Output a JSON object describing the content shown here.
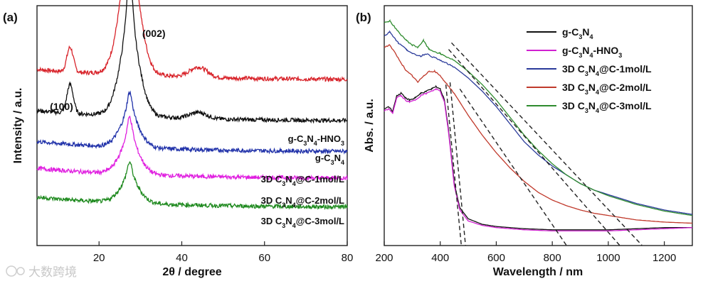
{
  "chart_data": [
    {
      "panel_label": "(a)",
      "type": "line",
      "xlabel": "2θ / degree",
      "ylabel": "Intensity / a.u.",
      "xlim": [
        5,
        80
      ],
      "xticks": [
        "20",
        "40",
        "60",
        "80"
      ],
      "y_ticks_shown": false,
      "peak_annotations": [
        {
          "text": "(100)",
          "x": 13.0
        },
        {
          "text": "(002)",
          "x": 27.4
        }
      ],
      "series": [
        {
          "name": "g-C3N4-HNO3",
          "label_main": "g-C",
          "sub1": "3",
          "mid": "N",
          "sub2": "4",
          "tail": "-HNO",
          "sub3": "3",
          "color": "#d8232a",
          "baseline": 0.75,
          "peak100": 0.12,
          "peak002": 1.0,
          "hump": 0.05
        },
        {
          "name": "g-C3N4",
          "label_main": "g-C",
          "sub1": "3",
          "mid": "N",
          "sub2": "4",
          "tail": "",
          "sub3": "",
          "color": "#111111",
          "baseline": 0.55,
          "peak100": 0.14,
          "peak002": 0.72,
          "hump": 0.03
        },
        {
          "name": "3D C3N4@C-1mol/L",
          "label_main": "3D C",
          "sub1": "3",
          "mid": "N",
          "sub2": "4",
          "tail": "@C-1mol/L",
          "sub3": "",
          "color": "#2233aa",
          "baseline": 0.4,
          "peak100": 0.0,
          "peak002": 0.27,
          "hump": 0.0
        },
        {
          "name": "3D C3N4@C-2mol/L",
          "label_main": "3D C",
          "sub1": "3",
          "mid": "N",
          "sub2": "4",
          "tail": "@C-2mol/L",
          "sub3": "",
          "color": "#e020e0",
          "baseline": 0.27,
          "peak100": 0.0,
          "peak002": 0.28,
          "hump": 0.0
        },
        {
          "name": "3D C3N4@C-3mol/L",
          "label_main": "3D C",
          "sub1": "3",
          "mid": "N",
          "sub2": "4",
          "tail": "@C-3mol/L",
          "sub3": "",
          "color": "#1f8a1f",
          "baseline": 0.13,
          "peak100": 0.0,
          "peak002": 0.2,
          "hump": 0.0
        }
      ]
    },
    {
      "panel_label": "(b)",
      "type": "line",
      "xlabel": "Wavelength / nm",
      "ylabel": "Abs. / a.u.",
      "xlim": [
        200,
        1300
      ],
      "xticks": [
        "200",
        "400",
        "600",
        "800",
        "1000",
        "1200"
      ],
      "y_ticks_shown": false,
      "tangent_intercepts_nm": [
        475,
        490,
        850,
        1040,
        1120
      ],
      "legend_position": "top-right",
      "series": [
        {
          "name": "g-C3N4",
          "label_main": "g-C",
          "sub1": "3",
          "mid": "N",
          "sub2": "4",
          "tail": "",
          "sub3": "",
          "color": "#111111",
          "points": [
            [
              200,
              0.57
            ],
            [
              215,
              0.58
            ],
            [
              230,
              0.56
            ],
            [
              245,
              0.63
            ],
            [
              260,
              0.64
            ],
            [
              275,
              0.62
            ],
            [
              290,
              0.61
            ],
            [
              310,
              0.62
            ],
            [
              330,
              0.64
            ],
            [
              350,
              0.65
            ],
            [
              370,
              0.66
            ],
            [
              385,
              0.67
            ],
            [
              400,
              0.66
            ],
            [
              415,
              0.61
            ],
            [
              430,
              0.47
            ],
            [
              450,
              0.23
            ],
            [
              470,
              0.12
            ],
            [
              500,
              0.07
            ],
            [
              550,
              0.045
            ],
            [
              600,
              0.035
            ],
            [
              700,
              0.025
            ],
            [
              800,
              0.02
            ],
            [
              900,
              0.02
            ],
            [
              1000,
              0.02
            ],
            [
              1100,
              0.025
            ],
            [
              1200,
              0.03
            ],
            [
              1300,
              0.03
            ]
          ]
        },
        {
          "name": "g-C3N4-HNO3",
          "label_main": "g-C",
          "sub1": "3",
          "mid": "N",
          "sub2": "4",
          "tail": "-HNO",
          "sub3": "3",
          "color": "#d020d0",
          "points": [
            [
              200,
              0.56
            ],
            [
              215,
              0.57
            ],
            [
              230,
              0.55
            ],
            [
              245,
              0.62
            ],
            [
              260,
              0.63
            ],
            [
              275,
              0.61
            ],
            [
              290,
              0.6
            ],
            [
              310,
              0.61
            ],
            [
              330,
              0.63
            ],
            [
              350,
              0.64
            ],
            [
              370,
              0.65
            ],
            [
              385,
              0.66
            ],
            [
              400,
              0.65
            ],
            [
              415,
              0.6
            ],
            [
              430,
              0.46
            ],
            [
              450,
              0.22
            ],
            [
              470,
              0.11
            ],
            [
              500,
              0.06
            ],
            [
              550,
              0.04
            ],
            [
              600,
              0.03
            ],
            [
              700,
              0.02
            ],
            [
              800,
              0.015
            ],
            [
              900,
              0.015
            ],
            [
              1000,
              0.015
            ],
            [
              1100,
              0.02
            ],
            [
              1200,
              0.025
            ],
            [
              1300,
              0.03
            ]
          ]
        },
        {
          "name": "3D C3N4@C-1mol/L",
          "label_main": "3D C",
          "sub1": "3",
          "mid": "N",
          "sub2": "4",
          "tail": "@C-1mol/L",
          "sub3": "",
          "color": "#2a3a9a",
          "points": [
            [
              200,
              0.9
            ],
            [
              220,
              0.92
            ],
            [
              250,
              0.87
            ],
            [
              280,
              0.84
            ],
            [
              300,
              0.82
            ],
            [
              330,
              0.81
            ],
            [
              350,
              0.82
            ],
            [
              400,
              0.79
            ],
            [
              450,
              0.76
            ],
            [
              500,
              0.71
            ],
            [
              550,
              0.65
            ],
            [
              600,
              0.58
            ],
            [
              650,
              0.5
            ],
            [
              700,
              0.42
            ],
            [
              750,
              0.36
            ],
            [
              800,
              0.31
            ],
            [
              850,
              0.27
            ],
            [
              900,
              0.23
            ],
            [
              950,
              0.2
            ],
            [
              1000,
              0.18
            ],
            [
              1050,
              0.16
            ],
            [
              1100,
              0.14
            ],
            [
              1150,
              0.125
            ],
            [
              1200,
              0.11
            ],
            [
              1250,
              0.1
            ],
            [
              1300,
              0.09
            ]
          ]
        },
        {
          "name": "3D C3N4@C-2mol/L",
          "label_main": "3D C",
          "sub1": "3",
          "mid": "N",
          "sub2": "4",
          "tail": "@C-2mol/L",
          "sub3": "",
          "color": "#c0392b",
          "points": [
            [
              200,
              0.85
            ],
            [
              220,
              0.86
            ],
            [
              250,
              0.8
            ],
            [
              280,
              0.74
            ],
            [
              300,
              0.72
            ],
            [
              320,
              0.69
            ],
            [
              340,
              0.72
            ],
            [
              360,
              0.74
            ],
            [
              380,
              0.74
            ],
            [
              400,
              0.72
            ],
            [
              450,
              0.64
            ],
            [
              500,
              0.54
            ],
            [
              550,
              0.45
            ],
            [
              600,
              0.37
            ],
            [
              650,
              0.3
            ],
            [
              700,
              0.24
            ],
            [
              750,
              0.19
            ],
            [
              800,
              0.155
            ],
            [
              850,
              0.13
            ],
            [
              900,
              0.11
            ],
            [
              950,
              0.095
            ],
            [
              1000,
              0.085
            ],
            [
              1050,
              0.075
            ],
            [
              1100,
              0.065
            ],
            [
              1200,
              0.055
            ],
            [
              1300,
              0.05
            ]
          ]
        },
        {
          "name": "3D C3N4@C-3mol/L",
          "label_main": "3D C",
          "sub1": "3",
          "mid": "N",
          "sub2": "4",
          "tail": "@C-3mol/L",
          "sub3": "",
          "color": "#2e8b2e",
          "points": [
            [
              200,
              0.96
            ],
            [
              220,
              0.97
            ],
            [
              250,
              0.92
            ],
            [
              280,
              0.88
            ],
            [
              300,
              0.86
            ],
            [
              320,
              0.85
            ],
            [
              340,
              0.88
            ],
            [
              360,
              0.84
            ],
            [
              400,
              0.82
            ],
            [
              450,
              0.79
            ],
            [
              500,
              0.74
            ],
            [
              550,
              0.68
            ],
            [
              600,
              0.61
            ],
            [
              650,
              0.53
            ],
            [
              700,
              0.45
            ],
            [
              750,
              0.38
            ],
            [
              800,
              0.32
            ],
            [
              850,
              0.27
            ],
            [
              900,
              0.23
            ],
            [
              950,
              0.2
            ],
            [
              1000,
              0.175
            ],
            [
              1050,
              0.155
            ],
            [
              1100,
              0.135
            ],
            [
              1150,
              0.12
            ],
            [
              1200,
              0.105
            ],
            [
              1250,
              0.095
            ],
            [
              1300,
              0.085
            ]
          ]
        }
      ]
    }
  ],
  "watermark": {
    "text": "大数跨境",
    "color": "#c8c8c8"
  }
}
